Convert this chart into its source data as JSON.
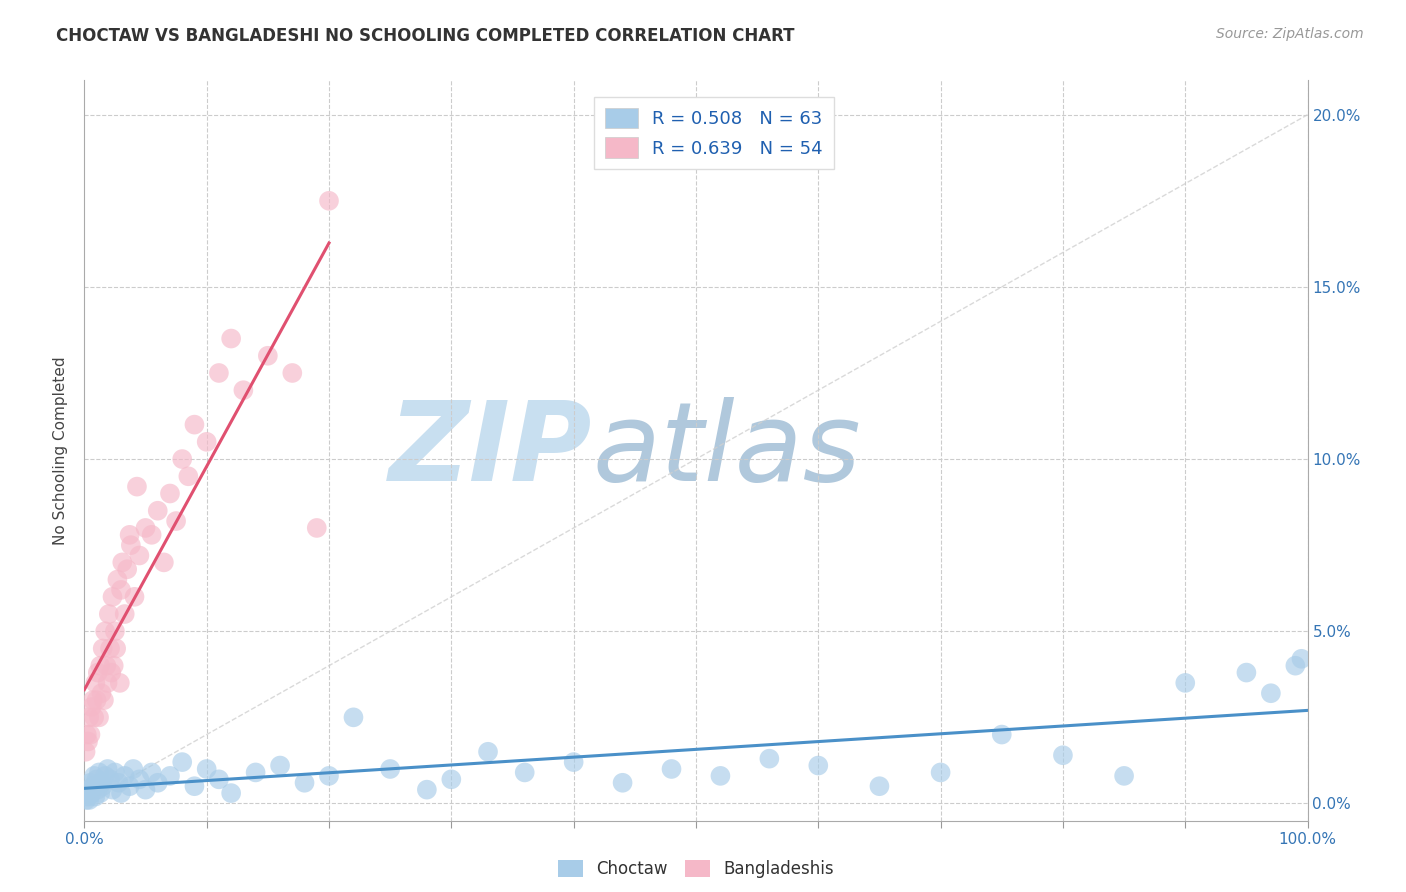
{
  "title": "CHOCTAW VS BANGLADESHI NO SCHOOLING COMPLETED CORRELATION CHART",
  "source": "Source: ZipAtlas.com",
  "ylabel": "No Schooling Completed",
  "legend_label_1": "R = 0.508   N = 63",
  "legend_label_2": "R = 0.639   N = 54",
  "choctaw_color": "#a8cce8",
  "bangladeshi_color": "#f5b8c8",
  "choctaw_line_color": "#4a90c8",
  "bangladeshi_line_color": "#e05070",
  "diagonal_color": "#d0d0d0",
  "watermark": "ZIPatlas",
  "watermark_color_zip": "#c8dff0",
  "watermark_color_atlas": "#b0c8dc",
  "xlim": [
    0,
    100
  ],
  "ylim": [
    -0.5,
    21
  ],
  "choctaw_x": [
    0.2,
    0.3,
    0.4,
    0.5,
    0.6,
    0.7,
    0.8,
    0.9,
    1.0,
    1.1,
    1.2,
    1.3,
    1.4,
    1.5,
    1.7,
    1.9,
    2.1,
    2.3,
    2.5,
    2.8,
    3.0,
    3.3,
    3.7,
    4.0,
    4.5,
    5.0,
    5.5,
    6.0,
    7.0,
    8.0,
    9.0,
    10.0,
    11.0,
    12.0,
    14.0,
    16.0,
    18.0,
    20.0,
    22.0,
    25.0,
    28.0,
    30.0,
    33.0,
    36.0,
    40.0,
    44.0,
    48.0,
    52.0,
    56.0,
    60.0,
    65.0,
    70.0,
    75.0,
    80.0,
    85.0,
    90.0,
    95.0,
    97.0,
    99.0,
    99.5,
    0.15,
    0.25,
    0.35
  ],
  "choctaw_y": [
    0.2,
    0.4,
    0.1,
    0.6,
    0.3,
    0.5,
    0.8,
    0.2,
    0.7,
    0.4,
    0.9,
    0.3,
    0.6,
    0.5,
    0.8,
    1.0,
    0.7,
    0.4,
    0.9,
    0.6,
    0.3,
    0.8,
    0.5,
    1.0,
    0.7,
    0.4,
    0.9,
    0.6,
    0.8,
    1.2,
    0.5,
    1.0,
    0.7,
    0.3,
    0.9,
    1.1,
    0.6,
    0.8,
    2.5,
    1.0,
    0.4,
    0.7,
    1.5,
    0.9,
    1.2,
    0.6,
    1.0,
    0.8,
    1.3,
    1.1,
    0.5,
    0.9,
    2.0,
    1.4,
    0.8,
    3.5,
    3.8,
    3.2,
    4.0,
    4.2,
    0.1,
    0.3,
    0.2
  ],
  "bangladeshi_x": [
    0.1,
    0.2,
    0.3,
    0.4,
    0.5,
    0.6,
    0.7,
    0.8,
    0.9,
    1.0,
    1.1,
    1.2,
    1.3,
    1.4,
    1.5,
    1.6,
    1.7,
    1.8,
    1.9,
    2.0,
    2.1,
    2.2,
    2.3,
    2.4,
    2.5,
    2.7,
    2.9,
    3.1,
    3.3,
    3.5,
    3.8,
    4.1,
    4.5,
    5.0,
    5.5,
    6.0,
    6.5,
    7.0,
    7.5,
    8.0,
    8.5,
    9.0,
    10.0,
    11.0,
    12.0,
    13.0,
    15.0,
    17.0,
    19.0,
    20.0,
    2.6,
    3.0,
    3.7,
    4.3
  ],
  "bangladeshi_y": [
    1.5,
    2.0,
    1.8,
    2.5,
    2.0,
    2.8,
    3.0,
    2.5,
    3.5,
    3.0,
    3.8,
    2.5,
    4.0,
    3.2,
    4.5,
    3.0,
    5.0,
    4.0,
    3.5,
    5.5,
    4.5,
    3.8,
    6.0,
    4.0,
    5.0,
    6.5,
    3.5,
    7.0,
    5.5,
    6.8,
    7.5,
    6.0,
    7.2,
    8.0,
    7.8,
    8.5,
    7.0,
    9.0,
    8.2,
    10.0,
    9.5,
    11.0,
    10.5,
    12.5,
    13.5,
    12.0,
    13.0,
    12.5,
    8.0,
    17.5,
    4.5,
    6.2,
    7.8,
    9.2
  ]
}
